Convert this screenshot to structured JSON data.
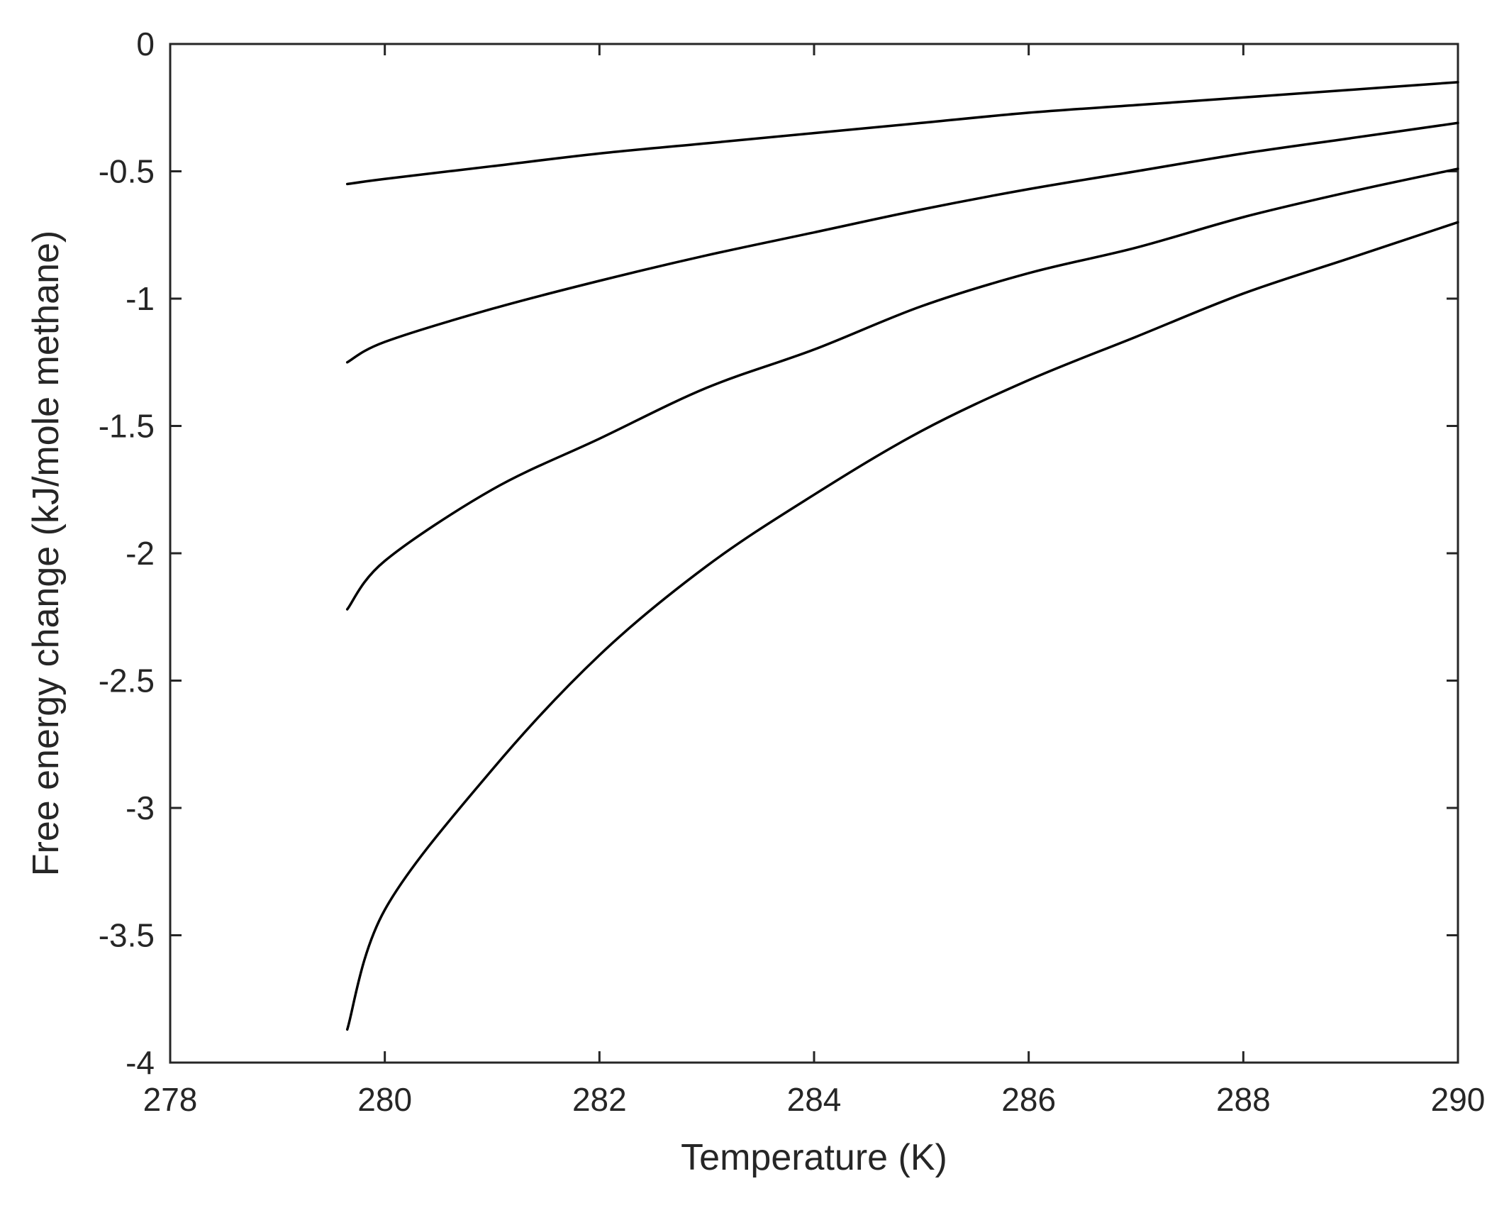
{
  "chart_data": {
    "type": "line",
    "title": "",
    "xlabel": "Temperature (K)",
    "ylabel": "Free energy change (kJ/mole methane)",
    "xlim": [
      278,
      290
    ],
    "ylim": [
      -4,
      0
    ],
    "x_ticks": [
      278,
      280,
      282,
      284,
      286,
      288,
      290
    ],
    "y_ticks": [
      0,
      -0.5,
      -1,
      -1.5,
      -2,
      -2.5,
      -3,
      -3.5,
      -4
    ],
    "x_tick_labels": [
      "278",
      "280",
      "282",
      "284",
      "286",
      "288",
      "290"
    ],
    "y_tick_labels": [
      "0",
      "-0.5",
      "-1",
      "-1.5",
      "-2",
      "-2.5",
      "-3",
      "-3.5",
      "-4"
    ],
    "grid": false,
    "legend": "none",
    "line_color": "#000000",
    "axis_color": "#262626",
    "series": [
      {
        "x": [
          279.65,
          280,
          281,
          282,
          283,
          284,
          285,
          286,
          287,
          288,
          289,
          290
        ],
        "values": [
          -0.55,
          -0.53,
          -0.48,
          -0.43,
          -0.39,
          -0.35,
          -0.31,
          -0.27,
          -0.24,
          -0.21,
          -0.18,
          -0.15
        ]
      },
      {
        "x": [
          279.65,
          280,
          281,
          282,
          283,
          284,
          285,
          286,
          287,
          288,
          289,
          290
        ],
        "values": [
          -1.25,
          -1.17,
          -1.04,
          -0.93,
          -0.83,
          -0.74,
          -0.65,
          -0.57,
          -0.5,
          -0.43,
          -0.37,
          -0.31
        ]
      },
      {
        "x": [
          279.65,
          280,
          281,
          282,
          283,
          284,
          285,
          286,
          287,
          288,
          289,
          290
        ],
        "values": [
          -2.22,
          -2.03,
          -1.75,
          -1.55,
          -1.35,
          -1.2,
          -1.03,
          -0.9,
          -0.8,
          -0.68,
          -0.58,
          -0.49
        ]
      },
      {
        "x": [
          279.65,
          280,
          281,
          282,
          283,
          284,
          285,
          286,
          287,
          288,
          289,
          290
        ],
        "values": [
          -3.87,
          -3.4,
          -2.85,
          -2.4,
          -2.05,
          -1.77,
          -1.52,
          -1.32,
          -1.15,
          -0.98,
          -0.84,
          -0.7
        ]
      }
    ]
  }
}
